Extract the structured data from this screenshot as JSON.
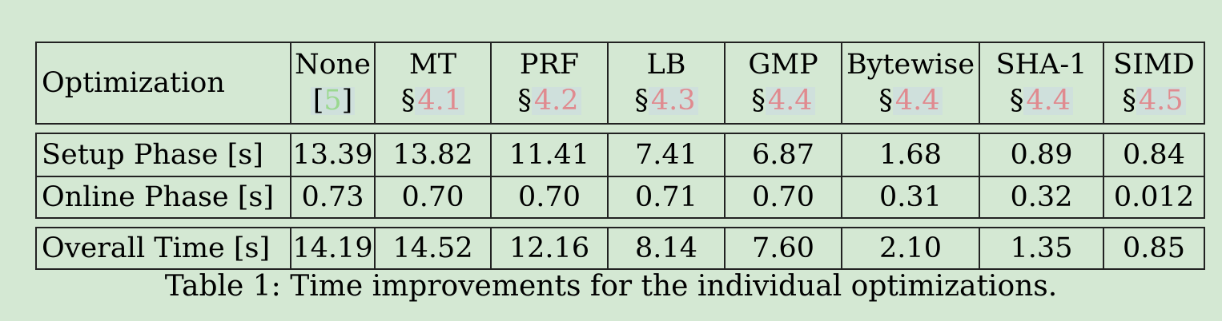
{
  "table": {
    "header": {
      "row_label": "Optimization",
      "columns": [
        {
          "name": "None",
          "ref_prefix": "[",
          "ref": "5",
          "ref_suffix": "]"
        },
        {
          "name": "MT",
          "ref_prefix": "§",
          "ref": "4.1",
          "ref_suffix": ""
        },
        {
          "name": "PRF",
          "ref_prefix": "§",
          "ref": "4.2",
          "ref_suffix": ""
        },
        {
          "name": "LB",
          "ref_prefix": "§",
          "ref": "4.3",
          "ref_suffix": ""
        },
        {
          "name": "GMP",
          "ref_prefix": "§",
          "ref": "4.4",
          "ref_suffix": ""
        },
        {
          "name": "Bytewise",
          "ref_prefix": "§",
          "ref": "4.4",
          "ref_suffix": ""
        },
        {
          "name": "SHA-1",
          "ref_prefix": "§",
          "ref": "4.4",
          "ref_suffix": ""
        },
        {
          "name": "SIMD",
          "ref_prefix": "§",
          "ref": "4.5",
          "ref_suffix": ""
        }
      ]
    },
    "rows": [
      {
        "label": "Setup Phase [s]",
        "values": [
          "13.39",
          "13.82",
          "11.41",
          "7.41",
          "6.87",
          "1.68",
          "0.89",
          "0.84"
        ]
      },
      {
        "label": "Online Phase [s]",
        "values": [
          "0.73",
          "0.70",
          "0.70",
          "0.71",
          "0.70",
          "0.31",
          "0.32",
          "0.012"
        ]
      },
      {
        "label": "Overall Time [s]",
        "values": [
          "14.19",
          "14.52",
          "12.16",
          "8.14",
          "7.60",
          "2.10",
          "1.35",
          "0.85"
        ]
      }
    ]
  },
  "caption": "Table 1: Time improvements for the individual optimizations.",
  "colors": {
    "background": "#d4e8d3",
    "section_ref": "#e08a8f",
    "citation_ref": "#9ad88f",
    "link_highlight": "#cfe0dc"
  }
}
